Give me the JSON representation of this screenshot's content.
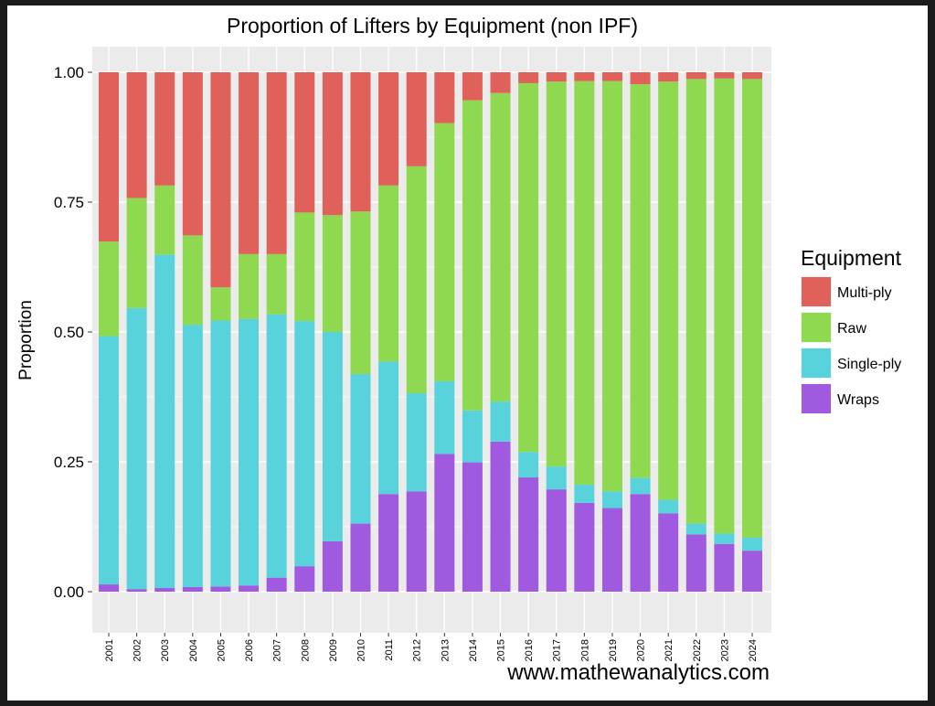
{
  "chart_data": {
    "type": "bar",
    "stacked": true,
    "title": "Proportion of Lifters by Equipment (non IPF)",
    "ylabel": "Proportion",
    "xlabel": "",
    "ylim": [
      0,
      1
    ],
    "yticks": [
      "0.00",
      "0.25",
      "0.50",
      "0.75",
      "1.00"
    ],
    "grid": true,
    "legend": {
      "title": "Equipment",
      "position": "right"
    },
    "categories": [
      "2001",
      "2002",
      "2003",
      "2004",
      "2005",
      "2006",
      "2007",
      "2008",
      "2009",
      "2010",
      "2011",
      "2012",
      "2013",
      "2014",
      "2015",
      "2016",
      "2017",
      "2018",
      "2019",
      "2020",
      "2021",
      "2022",
      "2023",
      "2024"
    ],
    "series": [
      {
        "name": "Multi-ply",
        "color": "#E0605A",
        "values": [
          0.326,
          0.242,
          0.218,
          0.314,
          0.414,
          0.35,
          0.35,
          0.27,
          0.275,
          0.268,
          0.218,
          0.181,
          0.098,
          0.054,
          0.04,
          0.021,
          0.018,
          0.017,
          0.017,
          0.023,
          0.018,
          0.013,
          0.012,
          0.013
        ]
      },
      {
        "name": "Raw",
        "color": "#8FD950",
        "values": [
          0.182,
          0.212,
          0.133,
          0.172,
          0.064,
          0.125,
          0.116,
          0.209,
          0.225,
          0.313,
          0.339,
          0.437,
          0.497,
          0.597,
          0.594,
          0.71,
          0.741,
          0.777,
          0.79,
          0.758,
          0.805,
          0.856,
          0.876,
          0.883
        ]
      },
      {
        "name": "Single-ply",
        "color": "#58D3DC",
        "values": [
          0.478,
          0.541,
          0.642,
          0.505,
          0.512,
          0.513,
          0.507,
          0.472,
          0.403,
          0.288,
          0.255,
          0.189,
          0.14,
          0.1,
          0.077,
          0.049,
          0.044,
          0.035,
          0.032,
          0.031,
          0.026,
          0.021,
          0.02,
          0.025
        ]
      },
      {
        "name": "Wraps",
        "color": "#A05ADF",
        "values": [
          0.014,
          0.005,
          0.007,
          0.009,
          0.01,
          0.012,
          0.027,
          0.049,
          0.097,
          0.131,
          0.188,
          0.193,
          0.265,
          0.249,
          0.289,
          0.22,
          0.197,
          0.171,
          0.161,
          0.188,
          0.151,
          0.11,
          0.092,
          0.079
        ]
      }
    ]
  },
  "footer": {
    "watermark": "www.mathewanalytics.com"
  }
}
